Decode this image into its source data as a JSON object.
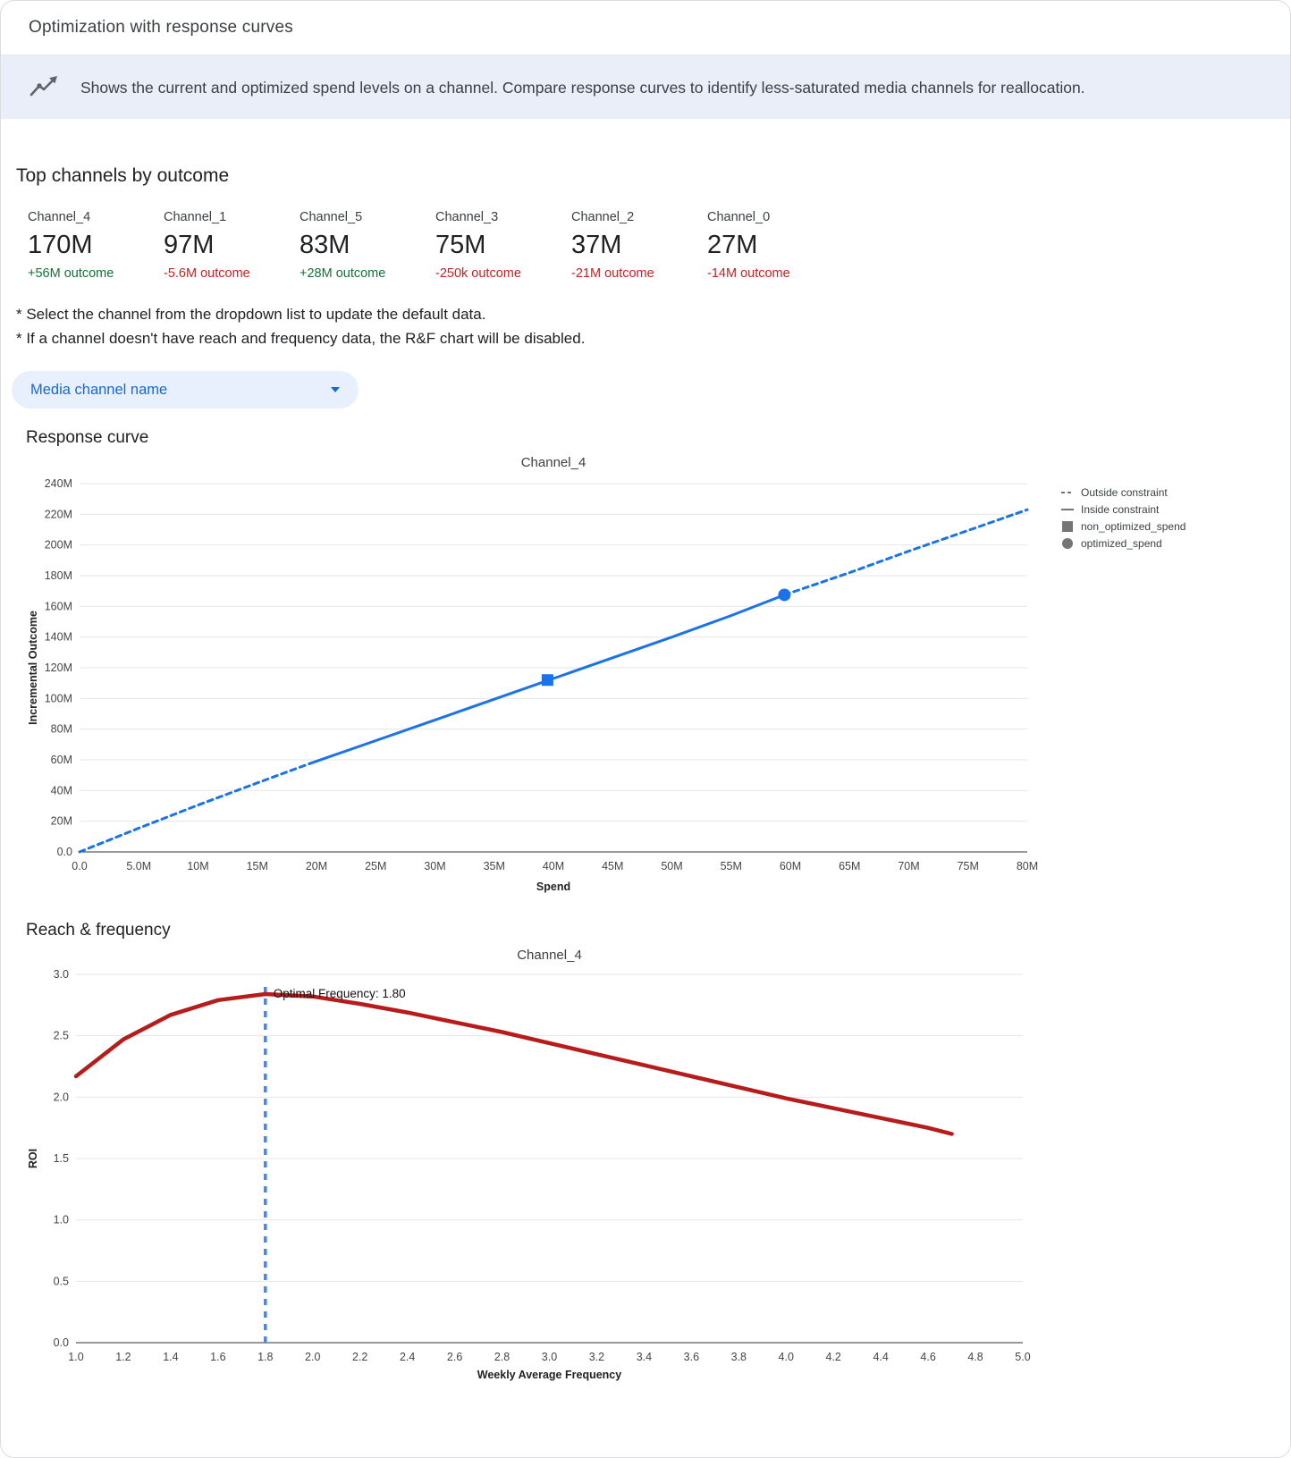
{
  "window": {
    "title": "Optimization with response curves"
  },
  "banner": {
    "icon": "trend-line-icon",
    "text": "Shows the current and optimized spend levels on a channel. Compare response curves to identify less-saturated media channels for reallocation."
  },
  "top_channels": {
    "heading": "Top channels by outcome",
    "items": [
      {
        "name": "Channel_4",
        "value": "170M",
        "delta": "+56M outcome",
        "trend": "positive"
      },
      {
        "name": "Channel_1",
        "value": "97M",
        "delta": "-5.6M outcome",
        "trend": "negative"
      },
      {
        "name": "Channel_5",
        "value": "83M",
        "delta": "+28M outcome",
        "trend": "positive"
      },
      {
        "name": "Channel_3",
        "value": "75M",
        "delta": "-250k outcome",
        "trend": "negative"
      },
      {
        "name": "Channel_2",
        "value": "37M",
        "delta": "-21M outcome",
        "trend": "negative"
      },
      {
        "name": "Channel_0",
        "value": "27M",
        "delta": "-14M outcome",
        "trend": "negative"
      }
    ]
  },
  "notes": {
    "line1": "* Select the channel from the dropdown list to update the default data.",
    "line2": "* If a channel doesn't have reach and frequency data, the R&F chart will be disabled."
  },
  "channel_dropdown": {
    "value": "Media channel name",
    "icon": "chevron-down-icon"
  },
  "sections": {
    "response_curve": "Response curve",
    "reach_frequency": "Reach & frequency"
  },
  "colors": {
    "accent_blue": "#1a73e8",
    "vline_blue": "#4285f4",
    "positive_green": "#137333",
    "negative_red": "#c5221f",
    "curve_red": "#b71c1c",
    "legend_swatch": "#757575"
  },
  "chart_data": [
    {
      "id": "response_curve",
      "type": "line",
      "title": "Channel_4",
      "xlabel": "Spend",
      "ylabel": "Incremental Outcome",
      "xlim": [
        0,
        80
      ],
      "ylim": [
        0,
        240
      ],
      "x_ticks": [
        0,
        5,
        10,
        15,
        20,
        25,
        30,
        35,
        40,
        45,
        50,
        55,
        60,
        65,
        70,
        75,
        80
      ],
      "x_tick_labels": [
        "0.0",
        "5.0M",
        "10M",
        "15M",
        "20M",
        "25M",
        "30M",
        "35M",
        "40M",
        "45M",
        "50M",
        "55M",
        "60M",
        "65M",
        "70M",
        "75M",
        "80M"
      ],
      "y_ticks": [
        0,
        20,
        40,
        60,
        80,
        100,
        120,
        140,
        160,
        180,
        200,
        220,
        240
      ],
      "y_tick_labels": [
        "0.0",
        "20M",
        "40M",
        "60M",
        "80M",
        "100M",
        "120M",
        "140M",
        "160M",
        "180M",
        "200M",
        "220M",
        "240M"
      ],
      "unit": "M",
      "grid": "horizontal",
      "series": [
        {
          "name": "Outside constraint (below)",
          "style": "dashed",
          "color": "#1a73e8",
          "width": 3,
          "points": [
            [
              0,
              0
            ],
            [
              5,
              15.5
            ],
            [
              10,
              30.5
            ],
            [
              15,
              45
            ],
            [
              19.4,
              57.5
            ]
          ]
        },
        {
          "name": "Inside constraint",
          "style": "solid",
          "color": "#1a73e8",
          "width": 3,
          "points": [
            [
              19.4,
              57.5
            ],
            [
              25,
              72.5
            ],
            [
              30,
              86
            ],
            [
              35,
              99.5
            ],
            [
              40,
              113
            ],
            [
              45,
              126.5
            ],
            [
              50,
              140
            ],
            [
              55,
              154
            ],
            [
              59.5,
              167.5
            ]
          ]
        },
        {
          "name": "Outside constraint (above)",
          "style": "dashed",
          "color": "#1a73e8",
          "width": 3,
          "points": [
            [
              59.5,
              167.5
            ],
            [
              65,
              182
            ],
            [
              70,
              196
            ],
            [
              75,
              209.5
            ],
            [
              80,
              223
            ]
          ]
        }
      ],
      "markers": [
        {
          "name": "non_optimized_spend",
          "shape": "square",
          "x": 39.5,
          "y": 112,
          "color": "#1a73e8"
        },
        {
          "name": "optimized_spend",
          "shape": "circle",
          "x": 59.5,
          "y": 167.5,
          "color": "#1a73e8"
        }
      ],
      "legend": {
        "position": "right",
        "items": [
          {
            "label": "Outside constraint",
            "swatch": "dashed-line"
          },
          {
            "label": "Inside constraint",
            "swatch": "solid-line"
          },
          {
            "label": "non_optimized_spend",
            "swatch": "square"
          },
          {
            "label": "optimized_spend",
            "swatch": "circle"
          }
        ]
      }
    },
    {
      "id": "reach_frequency",
      "type": "line",
      "title": "Channel_4",
      "xlabel": "Weekly Average Frequency",
      "ylabel": "ROI",
      "xlim": [
        1.0,
        5.0
      ],
      "ylim": [
        0,
        3.0
      ],
      "x_ticks": [
        1.0,
        1.2,
        1.4,
        1.6,
        1.8,
        2.0,
        2.2,
        2.4,
        2.6,
        2.8,
        3.0,
        3.2,
        3.4,
        3.6,
        3.8,
        4.0,
        4.2,
        4.4,
        4.6,
        4.8,
        5.0
      ],
      "x_tick_labels": [
        "1.0",
        "1.2",
        "1.4",
        "1.6",
        "1.8",
        "2.0",
        "2.2",
        "2.4",
        "2.6",
        "2.8",
        "3.0",
        "3.2",
        "3.4",
        "3.6",
        "3.8",
        "4.0",
        "4.2",
        "4.4",
        "4.6",
        "4.8",
        "5.0"
      ],
      "y_ticks": [
        0,
        0.5,
        1.0,
        1.5,
        2.0,
        2.5,
        3.0
      ],
      "y_tick_labels": [
        "0.0",
        "0.5",
        "1.0",
        "1.5",
        "2.0",
        "2.5",
        "3.0"
      ],
      "grid": "horizontal",
      "series": [
        {
          "name": "ROI curve",
          "style": "solid",
          "color": "#b71c1c",
          "width": 4.5,
          "points": [
            [
              1.0,
              2.17
            ],
            [
              1.2,
              2.47
            ],
            [
              1.4,
              2.67
            ],
            [
              1.6,
              2.79
            ],
            [
              1.8,
              2.84
            ],
            [
              2.0,
              2.82
            ],
            [
              2.2,
              2.76
            ],
            [
              2.4,
              2.69
            ],
            [
              2.6,
              2.61
            ],
            [
              2.8,
              2.53
            ],
            [
              3.0,
              2.44
            ],
            [
              3.2,
              2.35
            ],
            [
              3.4,
              2.26
            ],
            [
              3.6,
              2.17
            ],
            [
              3.8,
              2.08
            ],
            [
              4.0,
              1.99
            ],
            [
              4.2,
              1.91
            ],
            [
              4.4,
              1.83
            ],
            [
              4.6,
              1.75
            ],
            [
              4.7,
              1.7
            ]
          ]
        }
      ],
      "vline": {
        "x": 1.8,
        "style": "dashed",
        "color": "#4285f4",
        "label": "Optimal Frequency: 1.80"
      }
    }
  ]
}
